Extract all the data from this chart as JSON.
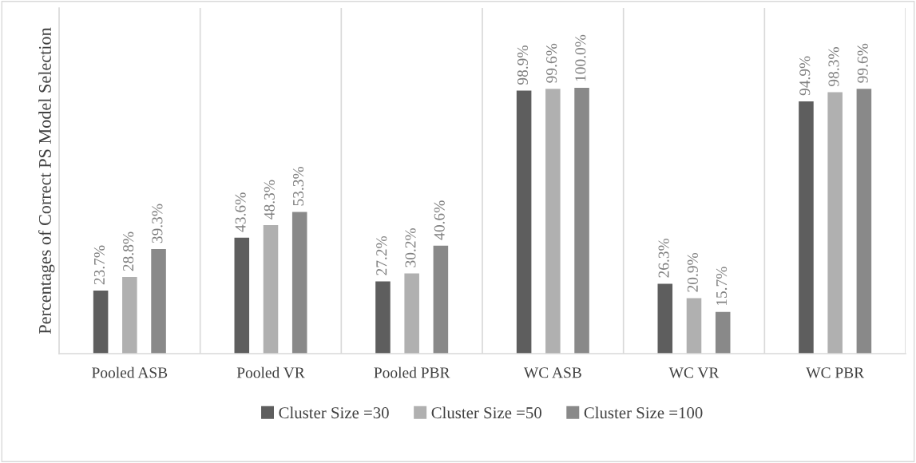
{
  "chart_data": {
    "type": "bar",
    "ylabel": "Percentages of Correct PS Model Selection",
    "categories": [
      "Pooled ASB",
      "Pooled VR",
      "Pooled PBR",
      "WC ASB",
      "WC VR",
      "WC PBR"
    ],
    "series": [
      {
        "name": "Cluster Size =30",
        "color": "#5e5e5e",
        "values": [
          23.7,
          43.6,
          27.2,
          98.9,
          26.3,
          94.9
        ],
        "value_labels": [
          "23.7%",
          "43.6%",
          "27.2%",
          "98.9%",
          "26.3%",
          "94.9%"
        ]
      },
      {
        "name": "Cluster Size =50",
        "color": "#b0b0b0",
        "values": [
          28.8,
          48.3,
          30.2,
          99.6,
          20.9,
          98.3
        ],
        "value_labels": [
          "28.8%",
          "48.3%",
          "30.2%",
          "99.6%",
          "20.9%",
          "98.3%"
        ]
      },
      {
        "name": "Cluster Size =100",
        "color": "#898989",
        "values": [
          39.3,
          53.3,
          40.6,
          100.0,
          15.7,
          99.6
        ],
        "value_labels": [
          "39.3%",
          "53.3%",
          "40.6%",
          "100.0%",
          "15.7%",
          "99.6%"
        ]
      }
    ],
    "ylim": [
      0,
      130
    ],
    "tick_labels": "x",
    "grid": "x",
    "legend": "bottom"
  }
}
